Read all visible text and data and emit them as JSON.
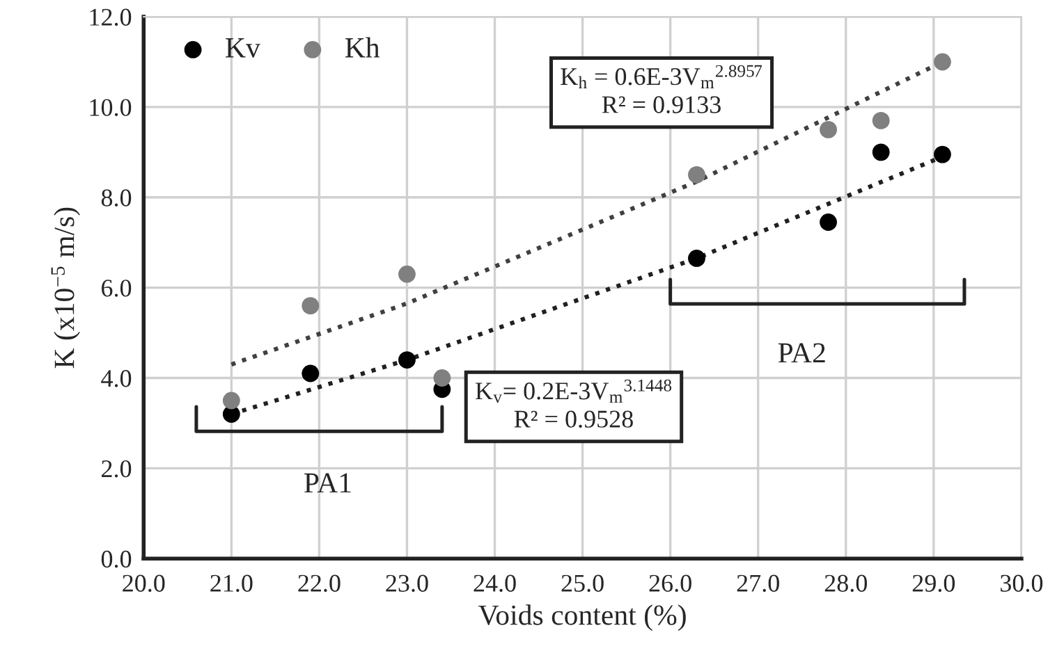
{
  "chart_data": {
    "type": "scatter",
    "xlabel": "Voids content (%)",
    "ylabel": "K (x10$^{−5}$ m/s)",
    "xlim": [
      20,
      30
    ],
    "ylim": [
      0,
      12
    ],
    "xticks": [
      {
        "value": 20,
        "label": "20.0"
      },
      {
        "value": 21,
        "label": "21.0"
      },
      {
        "value": 22,
        "label": "22.0"
      },
      {
        "value": 23,
        "label": "23.0"
      },
      {
        "value": 24,
        "label": "24.0"
      },
      {
        "value": 25,
        "label": "25.0"
      },
      {
        "value": 26,
        "label": "26.0"
      },
      {
        "value": 27,
        "label": "27.0"
      },
      {
        "value": 28,
        "label": "28.0"
      },
      {
        "value": 29,
        "label": "29.0"
      },
      {
        "value": 30,
        "label": "30.0"
      }
    ],
    "yticks": [
      {
        "value": 0,
        "label": "0.0"
      },
      {
        "value": 2,
        "label": "2.0"
      },
      {
        "value": 4,
        "label": "4.0"
      },
      {
        "value": 6,
        "label": "6.0"
      },
      {
        "value": 8,
        "label": "8.0"
      },
      {
        "value": 10,
        "label": "10.0"
      },
      {
        "value": 12,
        "label": "12.0"
      }
    ],
    "grid": true,
    "legend": "top left",
    "marker": "circle",
    "series": [
      {
        "name": "Kv",
        "color": "#000000",
        "x": [
          21.0,
          21.9,
          23.0,
          23.4,
          26.3,
          27.8,
          28.4,
          29.1
        ],
        "values": [
          3.2,
          4.1,
          4.4,
          3.75,
          6.65,
          7.45,
          9.0,
          8.95
        ]
      },
      {
        "name": "Kh",
        "color": "#808080",
        "x": [
          21.0,
          21.9,
          23.0,
          23.4,
          26.3,
          27.8,
          28.4,
          29.1
        ],
        "values": [
          3.5,
          5.6,
          6.3,
          4.0,
          8.5,
          9.5,
          9.7,
          11.0
        ]
      },
      {
        "type": "line",
        "color": "#404040",
        "line_style": "dotted",
        "marker": "none",
        "x": [
          21.0,
          23.0,
          26.3,
          29.1
        ],
        "values": [
          4.3,
          5.65,
          8.35,
          11.0
        ]
      },
      {
        "type": "line",
        "color": "#202020",
        "line_style": "dotted",
        "marker": "none",
        "x": [
          21.0,
          23.0,
          26.3,
          29.1
        ],
        "values": [
          3.2,
          4.4,
          6.65,
          8.9
        ]
      }
    ],
    "annotations": [
      "K$_{h}$ = 0.6E-3V$_{m}$$^{2.8957}$\nR² = 0.9133",
      "K$_{v}$= 0.2E-3V$_{m}$$^{3.1448}$\nR² = 0.9528",
      "PA1",
      "PA2"
    ]
  }
}
